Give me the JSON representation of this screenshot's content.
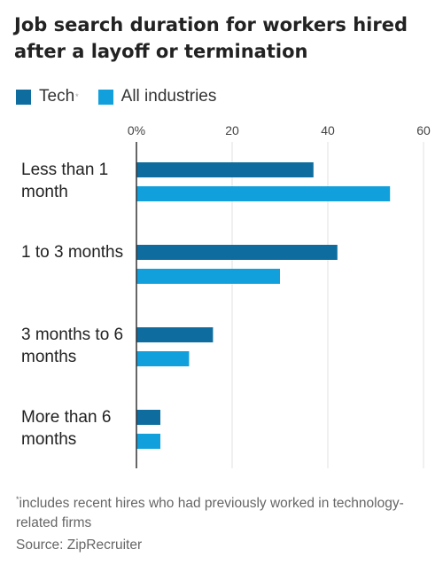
{
  "title": "Job search duration for workers hired after a layoff or termination",
  "legend": {
    "tech_label": "Tech",
    "tech_marker": "*",
    "all_label": "All industries"
  },
  "colors": {
    "tech": "#0e6d9e",
    "all_industries": "#11a0dc",
    "grid": "#e2e2e2",
    "axis": "#333333"
  },
  "chart_data": {
    "type": "bar",
    "orientation": "horizontal",
    "categories": [
      "Less than 1 month",
      "1 to 3 months",
      "3 months to 6 months",
      "More than 6 months"
    ],
    "series": [
      {
        "name": "Tech",
        "values": [
          37,
          42,
          16,
          5
        ]
      },
      {
        "name": "All industries",
        "values": [
          53,
          30,
          11,
          5
        ]
      }
    ],
    "xlim": [
      0,
      60
    ],
    "x_ticks": [
      0,
      20,
      40,
      60
    ],
    "x_tick_labels": [
      "0%",
      "20",
      "40",
      "60"
    ],
    "grid": true,
    "legend_position": "top-left"
  },
  "footnote": {
    "marker": "*",
    "text": "includes recent hires who had previously worked in technology-related firms"
  },
  "source": "Source: ZipRecruiter"
}
